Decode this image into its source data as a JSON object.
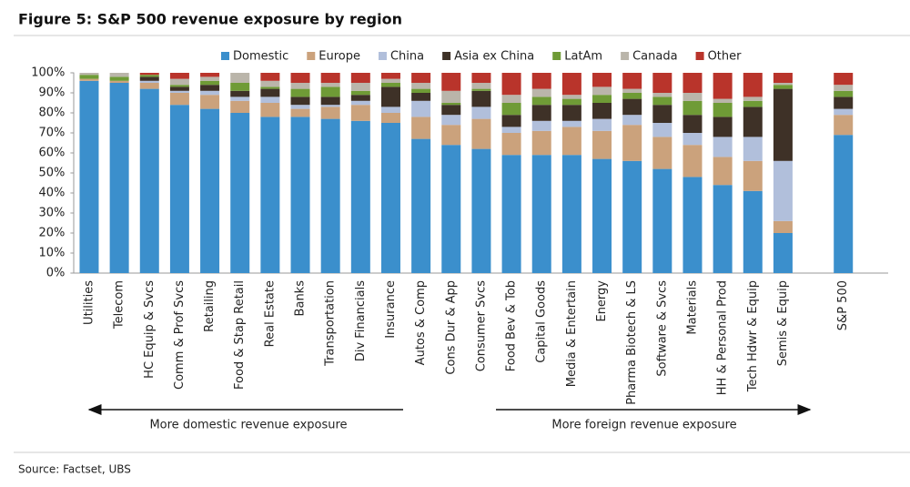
{
  "chart_data": {
    "type": "stacked_bar",
    "title": "Figure 5: S&P 500 revenue exposure by region",
    "categories": [
      "Utilities",
      "Telecom",
      "HC Equip & Svcs",
      "Comm & Prof Svcs",
      "Retailing",
      "Food & Stap Retail",
      "Real Estate",
      "Banks",
      "Transportation",
      "Div Financials",
      "Insurance",
      "Autos & Comp",
      "Cons Dur & App",
      "Consumer Svcs",
      "Food Bev & Tob",
      "Capital Goods",
      "Media & Entertain",
      "Energy",
      "Pharma Biotech & LS",
      "Software & Svcs",
      "Materials",
      "HH & Personal Prod",
      "Tech Hdwr & Equip",
      "Semis & Equip",
      null,
      "S&P 500"
    ],
    "series": [
      {
        "name": "Domestic",
        "color": "#3b8fcc",
        "values": [
          96,
          95,
          92,
          84,
          82,
          80,
          78,
          78,
          77,
          76,
          75,
          67,
          64,
          62,
          59,
          59,
          59,
          57,
          56,
          52,
          48,
          44,
          41,
          20,
          null,
          69
        ]
      },
      {
        "name": "Europe",
        "color": "#cba27c",
        "values": [
          1,
          1,
          3,
          6,
          7,
          6,
          7,
          4,
          6,
          8,
          5,
          11,
          10,
          15,
          11,
          12,
          14,
          14,
          18,
          16,
          16,
          14,
          15,
          6,
          null,
          10
        ]
      },
      {
        "name": "China",
        "color": "#b1bfdb",
        "values": [
          0,
          0,
          1,
          1,
          2,
          2,
          3,
          2,
          1,
          2,
          3,
          8,
          5,
          6,
          3,
          5,
          3,
          6,
          5,
          7,
          6,
          10,
          12,
          30,
          null,
          3
        ]
      },
      {
        "name": "Asia ex China",
        "color": "#3e3127",
        "values": [
          0,
          0,
          2,
          2,
          3,
          3,
          4,
          4,
          4,
          3,
          10,
          4,
          5,
          8,
          6,
          8,
          8,
          8,
          8,
          9,
          9,
          10,
          15,
          36,
          null,
          6
        ]
      },
      {
        "name": "LatAm",
        "color": "#6f9b36",
        "values": [
          2,
          2,
          1,
          1,
          2,
          4,
          1,
          4,
          5,
          2,
          2,
          2,
          1,
          1,
          6,
          4,
          3,
          4,
          3,
          4,
          7,
          7,
          3,
          2,
          null,
          3
        ]
      },
      {
        "name": "Canada",
        "color": "#bab5aa",
        "values": [
          1,
          2,
          0,
          3,
          2,
          5,
          3,
          3,
          2,
          4,
          2,
          3,
          6,
          3,
          4,
          4,
          2,
          4,
          2,
          2,
          4,
          2,
          2,
          1,
          null,
          3
        ]
      },
      {
        "name": "Other",
        "color": "#b9342b",
        "values": [
          0,
          0,
          1,
          3,
          2,
          0,
          4,
          5,
          5,
          5,
          3,
          5,
          9,
          5,
          11,
          8,
          11,
          7,
          8,
          10,
          10,
          13,
          12,
          5,
          null,
          6
        ]
      }
    ],
    "ylim": [
      0,
      100
    ],
    "yticks": [
      {
        "value": 0,
        "label": "0%"
      },
      {
        "value": 10,
        "label": "10%"
      },
      {
        "value": 20,
        "label": "20%"
      },
      {
        "value": 30,
        "label": "30%"
      },
      {
        "value": 40,
        "label": "40%"
      },
      {
        "value": 50,
        "label": "50%"
      },
      {
        "value": 60,
        "label": "60%"
      },
      {
        "value": 70,
        "label": "70%"
      },
      {
        "value": 80,
        "label": "80%"
      },
      {
        "value": 90,
        "label": "90%"
      },
      {
        "value": 100,
        "label": "100%"
      }
    ],
    "legend": "top",
    "annotations": [
      "More domestic revenue exposure",
      "More foreign revenue exposure"
    ],
    "source": "Source: Factset, UBS"
  }
}
